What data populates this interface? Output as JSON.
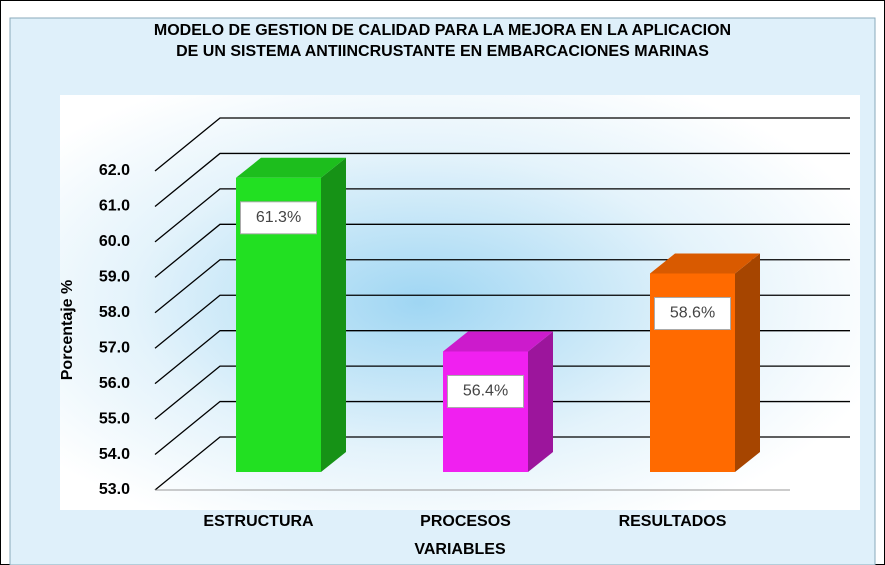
{
  "chart_data": {
    "type": "bar3d",
    "title": "MODELO DE GESTION DE CALIDAD PARA LA MEJORA EN LA APLICACION DE UN SISTEMA ANTIINCRUSTANTE EN EMBARCACIONES MARINAS",
    "x_label": "VARIABLES",
    "y_label": "Porcentaje %",
    "categories": [
      "ESTRUCTURA",
      "PROCESOS",
      "RESULTADOS"
    ],
    "values": [
      61.3,
      56.4,
      58.6
    ],
    "value_labels": [
      "61.3%",
      "56.4%",
      "58.6%"
    ],
    "colors": [
      "#22e022",
      "#f020f0",
      "#ff6a00"
    ],
    "ylim": [
      53,
      62
    ],
    "yticks": [
      {
        "value": 53,
        "label": "53.0"
      },
      {
        "value": 54,
        "label": "54.0"
      },
      {
        "value": 55,
        "label": "55.0"
      },
      {
        "value": 56,
        "label": "56.0"
      },
      {
        "value": 57,
        "label": "57.0"
      },
      {
        "value": 58,
        "label": "58.0"
      },
      {
        "value": 59,
        "label": "59.0"
      },
      {
        "value": 60,
        "label": "60.0"
      },
      {
        "value": 61,
        "label": "61.0"
      },
      {
        "value": 62,
        "label": "62.0"
      }
    ],
    "grid": true
  }
}
